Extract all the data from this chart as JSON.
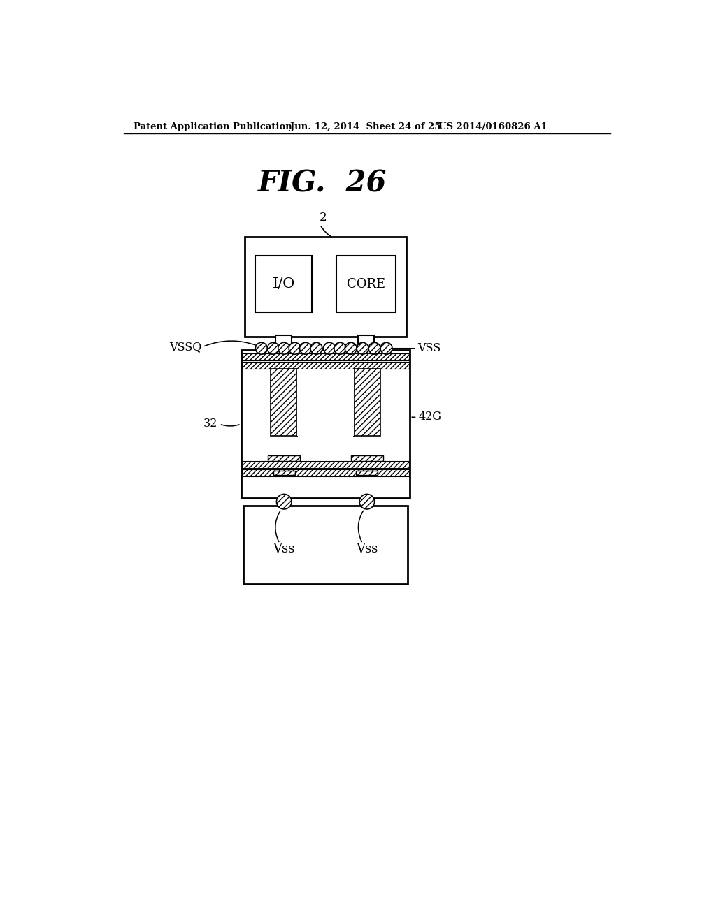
{
  "title": "FIG.  26",
  "header_left": "Patent Application Publication",
  "header_mid": "Jun. 12, 2014  Sheet 24 of 25",
  "header_right": "US 2014/0160826 A1",
  "bg_color": "#ffffff",
  "line_color": "#000000",
  "label_2": "2",
  "label_vssq": "VSSQ",
  "label_vss_right": "VSS",
  "label_32": "32",
  "label_42g": "42G",
  "label_io": "I/O",
  "label_core": "CORE",
  "label_vss1": "Vss",
  "label_vss2": "Vss"
}
